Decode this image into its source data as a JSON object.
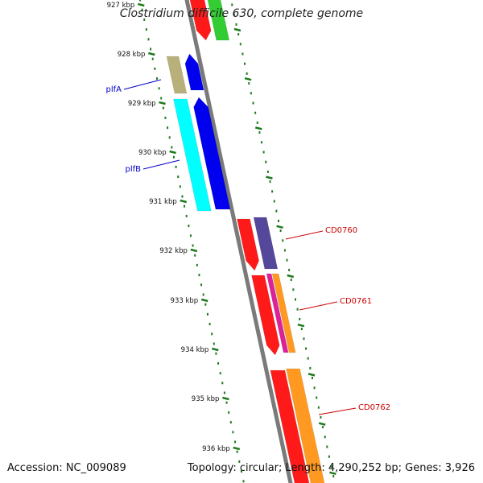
{
  "map": {
    "title": "Clostridium difficile 630, complete genome",
    "accession_label": "Accession: NC_009089",
    "summary_label": "Topology: circular; Length: 4,290,252 bp; Genes: 3,926"
  },
  "colors": {
    "backbone": "#7a7a7a",
    "tick": "#1f7a1f",
    "label_blue": "#0000cc",
    "label_red": "#cc0000"
  },
  "ruler": {
    "labels": [
      "927 kbp",
      "928 kbp",
      "929 kbp",
      "930 kbp",
      "931 kbp",
      "932 kbp",
      "933 kbp",
      "934 kbp",
      "935 kbp",
      "936 kbp"
    ]
  },
  "features": [
    {
      "name": "gene-red-top",
      "color": "#ff1a1a"
    },
    {
      "name": "gene-green-top",
      "color": "#33cc33"
    },
    {
      "name": "gene-olive",
      "color": "#b8b07a"
    },
    {
      "name": "gene-blue-plfA",
      "color": "#0000ee"
    },
    {
      "name": "gene-cyan",
      "color": "#00ffff"
    },
    {
      "name": "gene-blue-plfB",
      "color": "#0000ee"
    },
    {
      "name": "gene-red-cd0760",
      "color": "#ff1a1a"
    },
    {
      "name": "gene-purple-cd0760",
      "color": "#55489a"
    },
    {
      "name": "gene-red-cd0761",
      "color": "#ff1a1a"
    },
    {
      "name": "gene-magenta-cd0761",
      "color": "#dd2299"
    },
    {
      "name": "gene-orange-cd0761",
      "color": "#ff9922"
    },
    {
      "name": "gene-red-bottom",
      "color": "#ff1a1a"
    },
    {
      "name": "gene-orange-cd0762",
      "color": "#ff9922"
    }
  ],
  "gene_labels": [
    {
      "text": "plfA",
      "color": "blue"
    },
    {
      "text": "plfB",
      "color": "blue"
    },
    {
      "text": "CD0760",
      "color": "red"
    },
    {
      "text": "CD0761",
      "color": "red"
    },
    {
      "text": "CD0762",
      "color": "red"
    }
  ]
}
